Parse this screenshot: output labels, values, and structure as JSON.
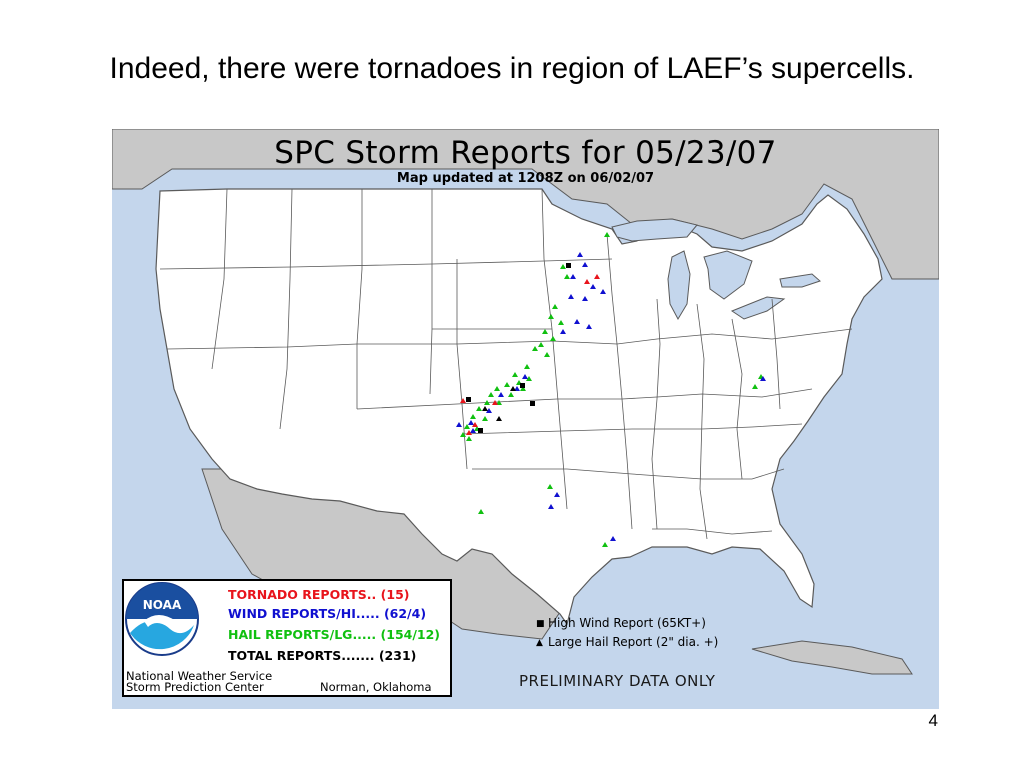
{
  "slide": {
    "title": "Indeed, there were tornadoes in region of LAEF’s supercells.",
    "page_number": "4"
  },
  "map": {
    "title": "SPC Storm Reports for 05/23/07",
    "subtitle": "Map updated at 1208Z on 06/02/07",
    "preliminary_note": "PRELIMINARY DATA ONLY"
  },
  "legend": {
    "tornado": "TORNADO REPORTS.. (15)",
    "wind": "WIND REPORTS/HI..... (62/4)",
    "hail": "HAIL REPORTS/LG..... (154/12)",
    "total": "TOTAL REPORTS....... (231)",
    "logo_text": "NOAA",
    "org_line1": "National Weather Service",
    "org_line2": "Storm Prediction Center",
    "location": "Norman, Oklahoma",
    "high_wind_key": "High Wind Report (65KT+)",
    "large_hail_key": "Large Hail Report (2\" dia. +)"
  },
  "colors": {
    "tornado": "#e8141c",
    "wind": "#1010d0",
    "hail": "#10c010",
    "land_us": "#ffffff",
    "land_foreign": "#c8c8c8",
    "water": "#c4d6ec",
    "border": "#5a5a5a"
  }
}
